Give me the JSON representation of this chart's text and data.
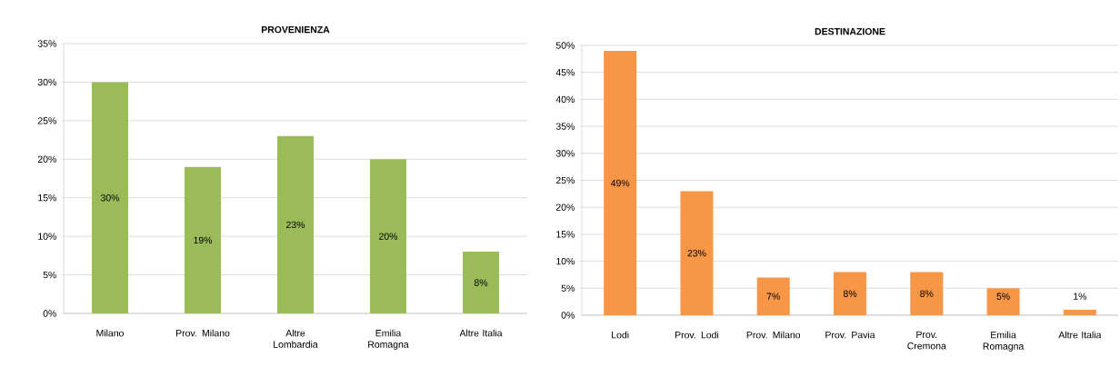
{
  "chart_data": [
    {
      "type": "bar",
      "title": "PROVENIENZA",
      "categories": [
        "Milano",
        "Prov. Milano",
        "Altre Lombardia",
        "Emilia Romagna",
        "Altre Italia"
      ],
      "values": [
        30,
        19,
        23,
        20,
        8
      ],
      "value_labels": [
        "30%",
        "19%",
        "23%",
        "20%",
        "8%"
      ],
      "color": "#9bbb59",
      "ylim": [
        0,
        35
      ],
      "yticks": [
        {
          "value": 0,
          "label": "0%"
        },
        {
          "value": 5,
          "label": "5%"
        },
        {
          "value": 10,
          "label": "10%"
        },
        {
          "value": 15,
          "label": "15%"
        },
        {
          "value": 20,
          "label": "20%"
        },
        {
          "value": 25,
          "label": "25%"
        },
        {
          "value": 30,
          "label": "30%"
        },
        {
          "value": 35,
          "label": "35%"
        }
      ],
      "grid": "y"
    },
    {
      "type": "bar",
      "title": "DESTINAZIONE",
      "categories": [
        "Lodi",
        "Prov. Lodi",
        "Prov. Milano",
        "Prov. Pavia",
        "Prov. Cremona",
        "Emilia Romagna",
        "Altre Italia"
      ],
      "values": [
        49,
        23,
        7,
        8,
        8,
        5,
        1
      ],
      "value_labels": [
        "49%",
        "23%",
        "7%",
        "8%",
        "8%",
        "5%",
        "1%"
      ],
      "color": "#f79646",
      "ylim": [
        0,
        50
      ],
      "yticks": [
        {
          "value": 0,
          "label": "0%"
        },
        {
          "value": 5,
          "label": "5%"
        },
        {
          "value": 10,
          "label": "10%"
        },
        {
          "value": 15,
          "label": "15%"
        },
        {
          "value": 20,
          "label": "20%"
        },
        {
          "value": 25,
          "label": "25%"
        },
        {
          "value": 30,
          "label": "30%"
        },
        {
          "value": 35,
          "label": "35%"
        },
        {
          "value": 40,
          "label": "40%"
        },
        {
          "value": 45,
          "label": "45%"
        },
        {
          "value": 50,
          "label": "50%"
        }
      ],
      "grid": "y"
    }
  ]
}
